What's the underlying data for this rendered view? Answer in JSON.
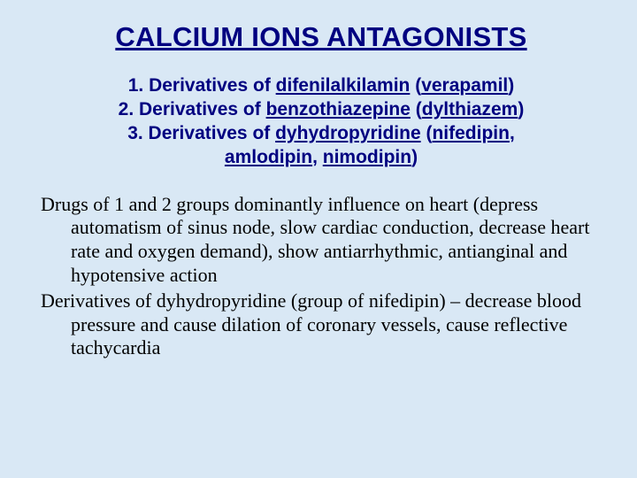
{
  "colors": {
    "background": "#d9e8f5",
    "heading": "#000080",
    "body": "#000000"
  },
  "typography": {
    "title_font": "Arial",
    "title_size_pt": 31,
    "title_weight": "bold",
    "classification_font": "Arial",
    "classification_size_pt": 21,
    "classification_weight": "bold",
    "body_font": "Times New Roman",
    "body_size_pt": 22,
    "body_weight": "normal"
  },
  "title": "CALCIUM IONS ANTAGONISTS",
  "classification": {
    "line1_prefix": "1. Derivatives of ",
    "line1_u1": "difenilalkilamin",
    "line1_mid": " (",
    "line1_u2": "verapamil",
    "line1_suffix": ")",
    "line2_prefix": "2. Derivatives of ",
    "line2_u1": "benzothiazepine",
    "line2_mid": " (",
    "line2_u2": "dylthiazem",
    "line2_suffix": ")",
    "line3_prefix": "3. Derivatives of ",
    "line3_u1": "dyhydropyridine",
    "line3_mid": " (",
    "line3_u2": "nifedipin",
    "line3_suffix": ",",
    "line4_u1": "amlodipin",
    "line4_mid": ", ",
    "line4_u2": "nimodipin",
    "line4_suffix": ")"
  },
  "paragraphs": {
    "p1": "Drugs of 1 and 2 groups dominantly influence on heart (depress automatism of sinus node, slow cardiac conduction, decrease heart rate and oxygen demand), show antiarrhythmic, antianginal and hypotensive action",
    "p2_prefix": "Derivatives of ",
    "p2_u": "dyhydropyridine",
    "p2_mid": " (group of ",
    "p2_u2": "nifedipin",
    "p2_suffix": ") – decrease blood pressure and cause dilation of coronary vessels, cause reflective tachycardia"
  }
}
